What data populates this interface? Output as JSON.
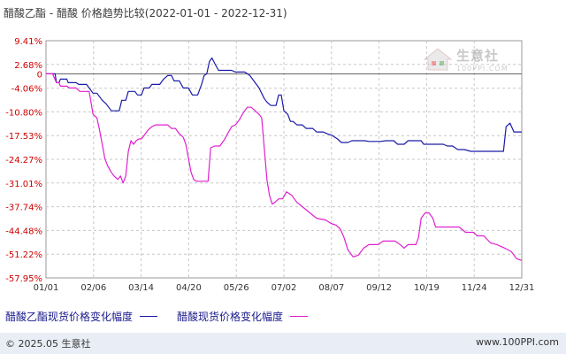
{
  "title": "醋酸乙酯 - 醋酸 价格趋势比较(2022-01-01 - 2022-12-31)",
  "watermark": {
    "cn": "生意社",
    "en": "100PPI.COM"
  },
  "footer": {
    "left": "© 2025.05 生意社",
    "right": "www.100PPI.com"
  },
  "colors": {
    "series1": "#1a1aa8",
    "series2": "#e020d0",
    "grid": "#c8c8c8",
    "axis": "#555555"
  },
  "chart_data": {
    "type": "line",
    "title": "醋酸乙酯 - 醋酸 价格趋势比较(2022-01-01 - 2022-12-31)",
    "x_range": [
      "2022-01-01",
      "2022-12-31"
    ],
    "x_ticks": [
      "01/01",
      "02/06",
      "03/14",
      "04/20",
      "05/26",
      "07/02",
      "08/07",
      "09/12",
      "10/19",
      "11/24",
      "12/31"
    ],
    "y_ticks": [
      "9.41%",
      "2.68%",
      "-4.06%",
      "-10.80%",
      "-17.53%",
      "-24.27%",
      "-31.01%",
      "-37.74%",
      "-44.48%",
      "-51.22%",
      "-57.95%"
    ],
    "ylim": [
      -57.95,
      9.41
    ],
    "grid": true,
    "legend_position": "bottom-left",
    "series": [
      {
        "name": "醋酸乙酯现货价格变化幅度",
        "color": "#1a1aa8",
        "points": [
          [
            "2022-01-01",
            0.0
          ],
          [
            "2022-01-08",
            0.0
          ],
          [
            "2022-01-09",
            -2.5
          ],
          [
            "2022-01-11",
            -2.5
          ],
          [
            "2022-01-12",
            -1.5
          ],
          [
            "2022-01-17",
            -1.5
          ],
          [
            "2022-01-18",
            -2.5
          ],
          [
            "2022-01-24",
            -2.5
          ],
          [
            "2022-01-26",
            -3.0
          ],
          [
            "2022-02-01",
            -3.0
          ],
          [
            "2022-02-03",
            -4.0
          ],
          [
            "2022-02-06",
            -5.5
          ],
          [
            "2022-02-09",
            -5.5
          ],
          [
            "2022-02-13",
            -7.5
          ],
          [
            "2022-02-16",
            -8.5
          ],
          [
            "2022-02-20",
            -10.5
          ],
          [
            "2022-02-26",
            -10.5
          ],
          [
            "2022-02-28",
            -7.5
          ],
          [
            "2022-03-03",
            -7.5
          ],
          [
            "2022-03-05",
            -5.0
          ],
          [
            "2022-03-10",
            -5.0
          ],
          [
            "2022-03-12",
            -6.0
          ],
          [
            "2022-03-15",
            -6.0
          ],
          [
            "2022-03-17",
            -4.0
          ],
          [
            "2022-03-21",
            -4.0
          ],
          [
            "2022-03-23",
            -3.0
          ],
          [
            "2022-03-29",
            -3.0
          ],
          [
            "2022-04-01",
            -1.5
          ],
          [
            "2022-04-04",
            -0.5
          ],
          [
            "2022-04-07",
            -0.5
          ],
          [
            "2022-04-09",
            -2.0
          ],
          [
            "2022-04-13",
            -2.0
          ],
          [
            "2022-04-16",
            -4.0
          ],
          [
            "2022-04-20",
            -4.0
          ],
          [
            "2022-04-23",
            -6.0
          ],
          [
            "2022-04-27",
            -6.0
          ],
          [
            "2022-04-30",
            -3.0
          ],
          [
            "2022-05-02",
            -0.5
          ],
          [
            "2022-05-04",
            0.0
          ],
          [
            "2022-05-06",
            3.5
          ],
          [
            "2022-05-08",
            4.5
          ],
          [
            "2022-05-10",
            3.0
          ],
          [
            "2022-05-13",
            1.0
          ],
          [
            "2022-05-23",
            1.0
          ],
          [
            "2022-05-26",
            0.5
          ],
          [
            "2022-06-02",
            0.5
          ],
          [
            "2022-06-06",
            -0.5
          ],
          [
            "2022-06-09",
            -2.0
          ],
          [
            "2022-06-13",
            -4.0
          ],
          [
            "2022-06-17",
            -7.0
          ],
          [
            "2022-06-19",
            -8.0
          ],
          [
            "2022-06-22",
            -9.0
          ],
          [
            "2022-06-26",
            -9.0
          ],
          [
            "2022-06-28",
            -6.0
          ],
          [
            "2022-06-30",
            -6.0
          ],
          [
            "2022-07-02",
            -10.5
          ],
          [
            "2022-07-05",
            -11.5
          ],
          [
            "2022-07-07",
            -13.5
          ],
          [
            "2022-07-09",
            -13.5
          ],
          [
            "2022-07-12",
            -14.5
          ],
          [
            "2022-07-16",
            -14.5
          ],
          [
            "2022-07-19",
            -15.5
          ],
          [
            "2022-07-24",
            -15.5
          ],
          [
            "2022-07-27",
            -16.5
          ],
          [
            "2022-08-01",
            -16.5
          ],
          [
            "2022-08-04",
            -17.0
          ],
          [
            "2022-08-08",
            -17.5
          ],
          [
            "2022-08-12",
            -18.5
          ],
          [
            "2022-08-15",
            -19.5
          ],
          [
            "2022-08-20",
            -19.5
          ],
          [
            "2022-08-23",
            -19.0
          ],
          [
            "2022-09-02",
            -19.0
          ],
          [
            "2022-09-05",
            -19.2
          ],
          [
            "2022-09-14",
            -19.2
          ],
          [
            "2022-09-18",
            -19.0
          ],
          [
            "2022-09-24",
            -19.0
          ],
          [
            "2022-09-27",
            -20.0
          ],
          [
            "2022-10-02",
            -20.0
          ],
          [
            "2022-10-05",
            -19.0
          ],
          [
            "2022-10-15",
            -19.0
          ],
          [
            "2022-10-17",
            -20.0
          ],
          [
            "2022-11-01",
            -20.0
          ],
          [
            "2022-11-04",
            -20.5
          ],
          [
            "2022-11-08",
            -20.5
          ],
          [
            "2022-11-12",
            -21.5
          ],
          [
            "2022-11-17",
            -21.5
          ],
          [
            "2022-11-22",
            -22.0
          ],
          [
            "2022-12-01",
            -22.0
          ],
          [
            "2022-12-07",
            -22.0
          ],
          [
            "2022-12-17",
            -22.0
          ],
          [
            "2022-12-19",
            -15.0
          ],
          [
            "2022-12-22",
            -14.0
          ],
          [
            "2022-12-25",
            -16.5
          ],
          [
            "2022-12-31",
            -16.5
          ]
        ]
      },
      {
        "name": "醋酸现货价格变化幅度",
        "color": "#e020d0",
        "points": [
          [
            "2022-01-01",
            0.0
          ],
          [
            "2022-01-06",
            0.0
          ],
          [
            "2022-01-09",
            -2.5
          ],
          [
            "2022-01-11",
            -2.5
          ],
          [
            "2022-01-12",
            -3.5
          ],
          [
            "2022-01-17",
            -3.5
          ],
          [
            "2022-01-19",
            -4.0
          ],
          [
            "2022-01-24",
            -4.0
          ],
          [
            "2022-01-27",
            -5.0
          ],
          [
            "2022-02-03",
            -5.0
          ],
          [
            "2022-02-06",
            -11.5
          ],
          [
            "2022-02-09",
            -12.5
          ],
          [
            "2022-02-11",
            -16.0
          ],
          [
            "2022-02-13",
            -20.0
          ],
          [
            "2022-02-15",
            -24.0
          ],
          [
            "2022-02-17",
            -26.0
          ],
          [
            "2022-02-20",
            -28.0
          ],
          [
            "2022-02-22",
            -29.0
          ],
          [
            "2022-02-25",
            -30.0
          ],
          [
            "2022-02-27",
            -29.0
          ],
          [
            "2022-03-01",
            -31.0
          ],
          [
            "2022-03-03",
            -29.0
          ],
          [
            "2022-03-05",
            -22.0
          ],
          [
            "2022-03-07",
            -19.0
          ],
          [
            "2022-03-09",
            -20.0
          ],
          [
            "2022-03-11",
            -19.0
          ],
          [
            "2022-03-13",
            -18.5
          ],
          [
            "2022-03-15",
            -18.5
          ],
          [
            "2022-03-17",
            -17.5
          ],
          [
            "2022-03-20",
            -16.0
          ],
          [
            "2022-03-23",
            -15.0
          ],
          [
            "2022-03-26",
            -14.5
          ],
          [
            "2022-04-04",
            -14.5
          ],
          [
            "2022-04-07",
            -15.5
          ],
          [
            "2022-04-10",
            -15.5
          ],
          [
            "2022-04-13",
            -17.0
          ],
          [
            "2022-04-16",
            -18.0
          ],
          [
            "2022-04-18",
            -20.0
          ],
          [
            "2022-04-20",
            -24.0
          ],
          [
            "2022-04-22",
            -28.0
          ],
          [
            "2022-04-24",
            -30.0
          ],
          [
            "2022-04-26",
            -30.5
          ],
          [
            "2022-05-05",
            -30.5
          ],
          [
            "2022-05-07",
            -21.0
          ],
          [
            "2022-05-10",
            -20.5
          ],
          [
            "2022-05-14",
            -20.5
          ],
          [
            "2022-05-17",
            -19.0
          ],
          [
            "2022-05-20",
            -17.0
          ],
          [
            "2022-05-23",
            -15.0
          ],
          [
            "2022-05-26",
            -14.5
          ],
          [
            "2022-05-29",
            -13.0
          ],
          [
            "2022-06-01",
            -11.0
          ],
          [
            "2022-06-04",
            -9.5
          ],
          [
            "2022-06-07",
            -9.5
          ],
          [
            "2022-06-10",
            -10.5
          ],
          [
            "2022-06-13",
            -11.5
          ],
          [
            "2022-06-15",
            -12.5
          ],
          [
            "2022-06-17",
            -21.0
          ],
          [
            "2022-06-19",
            -30.0
          ],
          [
            "2022-06-21",
            -34.5
          ],
          [
            "2022-06-23",
            -37.0
          ],
          [
            "2022-06-25",
            -36.5
          ],
          [
            "2022-06-28",
            -35.5
          ],
          [
            "2022-07-01",
            -35.5
          ],
          [
            "2022-07-04",
            -33.5
          ],
          [
            "2022-07-08",
            -34.5
          ],
          [
            "2022-07-12",
            -36.5
          ],
          [
            "2022-07-17",
            -38.0
          ],
          [
            "2022-07-22",
            -39.5
          ],
          [
            "2022-07-27",
            -41.0
          ],
          [
            "2022-08-03",
            -41.5
          ],
          [
            "2022-08-07",
            -42.5
          ],
          [
            "2022-08-11",
            -43.0
          ],
          [
            "2022-08-14",
            -44.0
          ],
          [
            "2022-08-17",
            -46.5
          ],
          [
            "2022-08-20",
            -50.0
          ],
          [
            "2022-08-24",
            -52.0
          ],
          [
            "2022-08-28",
            -51.5
          ],
          [
            "2022-09-01",
            -49.5
          ],
          [
            "2022-09-05",
            -48.5
          ],
          [
            "2022-09-12",
            -48.5
          ],
          [
            "2022-09-16",
            -47.5
          ],
          [
            "2022-09-25",
            -47.5
          ],
          [
            "2022-09-29",
            -48.5
          ],
          [
            "2022-10-02",
            -49.5
          ],
          [
            "2022-10-05",
            -48.5
          ],
          [
            "2022-10-11",
            -48.5
          ],
          [
            "2022-10-13",
            -46.5
          ],
          [
            "2022-10-15",
            -41.0
          ],
          [
            "2022-10-18",
            -39.5
          ],
          [
            "2022-10-21",
            -39.5
          ],
          [
            "2022-10-24",
            -41.0
          ],
          [
            "2022-10-26",
            -43.5
          ],
          [
            "2022-11-01",
            -43.5
          ],
          [
            "2022-11-07",
            -43.5
          ],
          [
            "2022-11-13",
            -43.5
          ],
          [
            "2022-11-18",
            -45.0
          ],
          [
            "2022-11-24",
            -45.0
          ],
          [
            "2022-11-27",
            -46.0
          ],
          [
            "2022-12-02",
            -46.0
          ],
          [
            "2022-12-07",
            -48.0
          ],
          [
            "2022-12-12",
            -48.5
          ],
          [
            "2022-12-18",
            -49.5
          ],
          [
            "2022-12-23",
            -50.5
          ],
          [
            "2022-12-27",
            -52.5
          ],
          [
            "2022-12-31",
            -53.0
          ]
        ]
      }
    ]
  }
}
